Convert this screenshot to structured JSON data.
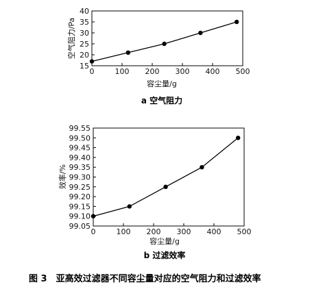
{
  "figure_caption": "图 3　亚高效过滤器不同容尘量对应的空气阻力和过滤效率",
  "chart_data": [
    {
      "type": "line",
      "subtitle": "a 空气阻力",
      "xlabel": "容尘量/g",
      "ylabel": "空气阻力/Pa",
      "xlim": [
        0,
        500
      ],
      "ylim": [
        15,
        40
      ],
      "xticks": [
        "0",
        "100",
        "200",
        "300",
        "400",
        "500"
      ],
      "yticks": [
        "15",
        "20",
        "25",
        "30",
        "35",
        "40"
      ],
      "x": [
        0,
        120,
        240,
        360,
        480
      ],
      "series": [
        {
          "values": [
            17,
            21,
            25,
            30,
            35
          ]
        }
      ],
      "grid": false
    },
    {
      "type": "line",
      "subtitle": "b 过滤效率",
      "xlabel": "容尘量/g",
      "ylabel": "效率/%",
      "xlim": [
        0,
        500
      ],
      "ylim": [
        99.05,
        99.55
      ],
      "xticks": [
        "0",
        "100",
        "200",
        "300",
        "400",
        "500"
      ],
      "yticks": [
        "99.05",
        "99.10",
        "99.15",
        "99.20",
        "99.25",
        "99.30",
        "99.35",
        "99.40",
        "99.45",
        "99.50",
        "99.55"
      ],
      "x": [
        0,
        120,
        240,
        360,
        480
      ],
      "series": [
        {
          "values": [
            99.1,
            99.15,
            99.25,
            99.35,
            99.5
          ]
        }
      ],
      "grid": false
    }
  ]
}
